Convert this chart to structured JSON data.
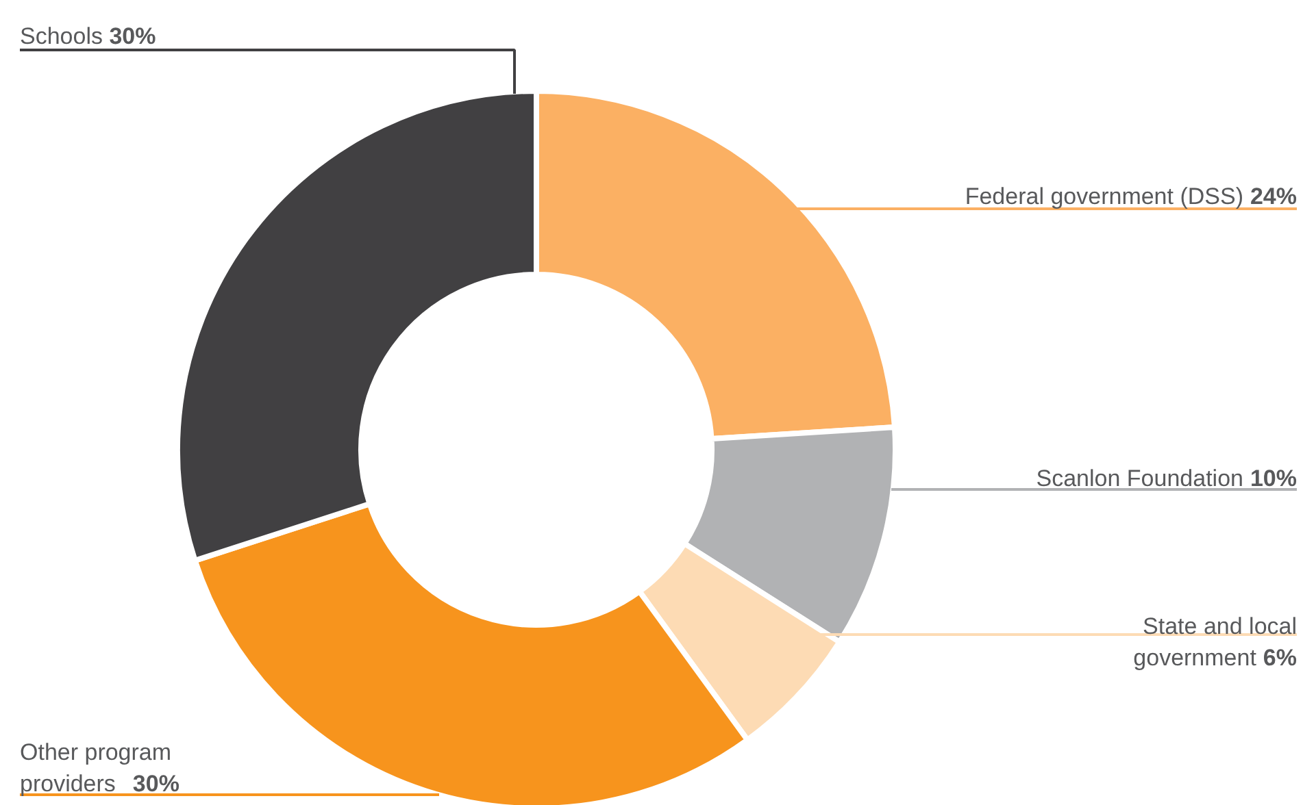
{
  "chart_data": {
    "type": "donut",
    "categories": [
      "Federal government (DSS)",
      "Scanlon Foundation",
      "State and local\ngovernment",
      "Other program\nproviders",
      "Schools"
    ],
    "values": [
      24,
      10,
      6,
      30,
      30
    ],
    "value_labels": [
      "24%",
      "10%",
      "6%",
      "30%",
      "30%"
    ],
    "colors": [
      "#fbb063",
      "#b1b2b4",
      "#fddbb4",
      "#f7941d",
      "#414042"
    ]
  }
}
